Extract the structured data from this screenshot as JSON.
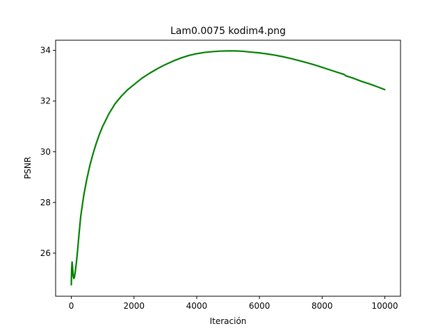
{
  "chart_data": {
    "type": "line",
    "title": "Lam0.0075 kodim4.png",
    "xlabel": "Iteración",
    "ylabel": "PSNR",
    "xlim": [
      -500,
      10500
    ],
    "ylim": [
      24.3,
      34.4
    ],
    "xticks": [
      0,
      2000,
      4000,
      6000,
      8000,
      10000
    ],
    "yticks": [
      26,
      28,
      30,
      32,
      34
    ],
    "grid": false,
    "series": [
      {
        "color": "#008000",
        "x": [
          0,
          10,
          25,
          40,
          60,
          80,
          100,
          130,
          160,
          200,
          250,
          300,
          400,
          500,
          600,
          700,
          800,
          900,
          1000,
          1200,
          1400,
          1600,
          1800,
          2000,
          2250,
          2500,
          2750,
          3000,
          3250,
          3500,
          3750,
          4000,
          4250,
          4500,
          4750,
          5000,
          5250,
          5500,
          5750,
          6000,
          6250,
          6500,
          6750,
          7000,
          7250,
          7500,
          7750,
          8000,
          8250,
          8500,
          8700,
          8750,
          9000,
          9250,
          9500,
          9750,
          10000
        ],
        "y": [
          24.75,
          25.35,
          25.65,
          25.45,
          25.1,
          25.0,
          25.05,
          25.3,
          25.6,
          26.1,
          26.8,
          27.45,
          28.3,
          28.95,
          29.5,
          29.95,
          30.35,
          30.7,
          31.0,
          31.5,
          31.9,
          32.2,
          32.45,
          32.65,
          32.9,
          33.1,
          33.28,
          33.44,
          33.58,
          33.7,
          33.8,
          33.87,
          33.92,
          33.95,
          33.97,
          33.98,
          33.98,
          33.96,
          33.93,
          33.9,
          33.86,
          33.81,
          33.75,
          33.68,
          33.6,
          33.52,
          33.43,
          33.33,
          33.23,
          33.13,
          33.05,
          33.0,
          32.9,
          32.78,
          32.68,
          32.57,
          32.45
        ]
      }
    ]
  }
}
